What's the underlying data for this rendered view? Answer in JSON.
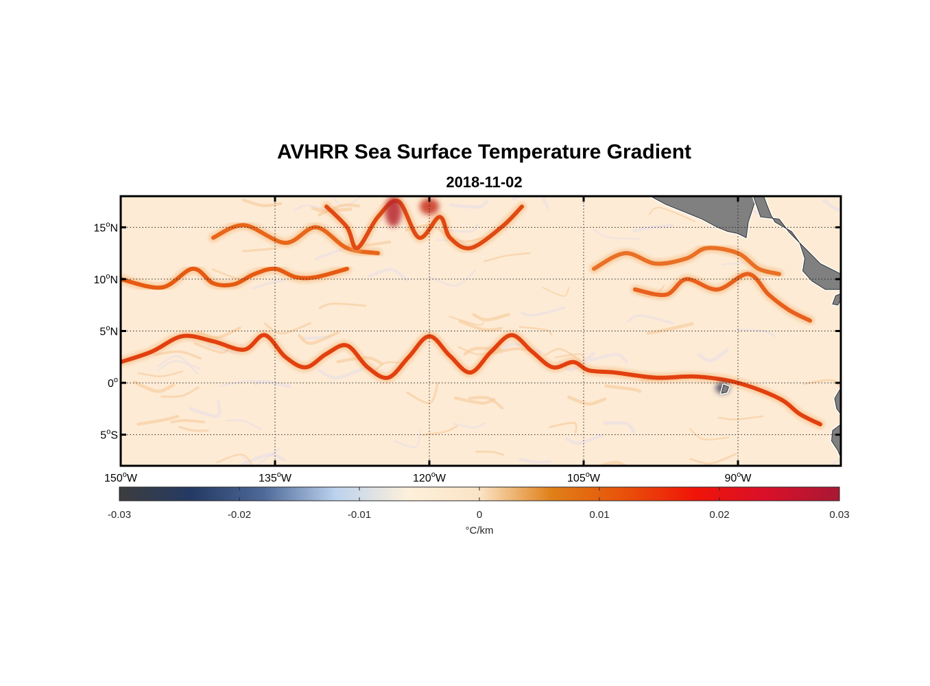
{
  "title": "AVHRR Sea Surface Temperature Gradient",
  "subtitle": "2018-11-02",
  "map": {
    "extent": {
      "lon": [
        -150,
        -80
      ],
      "lat": [
        -8,
        18
      ]
    },
    "land_color": "#808080",
    "ocean_base_color": "#fdebd5",
    "gridlines": "dotted",
    "lat_ticks": [
      {
        "lat": 15,
        "num": "15",
        "sup": "o",
        "hem": "N"
      },
      {
        "lat": 10,
        "num": "10",
        "sup": "o",
        "hem": "N"
      },
      {
        "lat": 5,
        "num": "5",
        "sup": "o",
        "hem": "N"
      },
      {
        "lat": 0,
        "num": "0",
        "sup": "o",
        "hem": ""
      },
      {
        "lat": -5,
        "num": "5",
        "sup": "o",
        "hem": "S"
      }
    ],
    "lon_ticks": [
      {
        "lon": -150,
        "num": "150",
        "sup": "o",
        "hem": "W"
      },
      {
        "lon": -135,
        "num": "135",
        "sup": "o",
        "hem": "W"
      },
      {
        "lon": -120,
        "num": "120",
        "sup": "o",
        "hem": "W"
      },
      {
        "lon": -105,
        "num": "105",
        "sup": "o",
        "hem": "W"
      },
      {
        "lon": -90,
        "num": "90",
        "sup": "o",
        "hem": "W"
      }
    ],
    "fronts": [
      {
        "name": "equatorial-front",
        "color": "#e2400f",
        "points": [
          [
            -150,
            2
          ],
          [
            -147,
            3
          ],
          [
            -144,
            4.5
          ],
          [
            -141,
            4
          ],
          [
            -138,
            3.2
          ],
          [
            -136,
            4.6
          ],
          [
            -134,
            2.5
          ],
          [
            -132,
            1.5
          ],
          [
            -130,
            2.8
          ],
          [
            -128,
            3.6
          ],
          [
            -126,
            1.5
          ],
          [
            -124,
            0.5
          ],
          [
            -122,
            2.5
          ],
          [
            -120,
            4.5
          ],
          [
            -118,
            2.6
          ],
          [
            -116,
            1
          ],
          [
            -114,
            3
          ],
          [
            -112,
            4.6
          ],
          [
            -110,
            3
          ],
          [
            -108,
            1.5
          ],
          [
            -106,
            2
          ],
          [
            -104.5,
            1.2
          ],
          [
            -102,
            1
          ],
          [
            -98,
            0.5
          ],
          [
            -94,
            0.6
          ],
          [
            -90,
            0
          ],
          [
            -86,
            -1.5
          ],
          [
            -84,
            -3
          ],
          [
            -82,
            -4
          ]
        ]
      },
      {
        "name": "northern-front-10n",
        "color": "#e65a12",
        "points": [
          [
            -150,
            10
          ],
          [
            -146,
            9.2
          ],
          [
            -143,
            11
          ],
          [
            -141,
            9.6
          ],
          [
            -139,
            9.5
          ],
          [
            -137,
            10.5
          ],
          [
            -135,
            11
          ],
          [
            -133,
            10.2
          ],
          [
            -131,
            10.2
          ],
          [
            -128,
            11
          ]
        ]
      },
      {
        "name": "northern-front-14n",
        "color": "#e8661a",
        "points": [
          [
            -141,
            14
          ],
          [
            -138,
            15.2
          ],
          [
            -134,
            13.5
          ],
          [
            -131,
            15
          ],
          [
            -128,
            13
          ],
          [
            -125,
            12.5
          ]
        ]
      },
      {
        "name": "upper-front-a",
        "color": "#e04a12",
        "points": [
          [
            -130,
            17
          ],
          [
            -128,
            15
          ],
          [
            -127,
            13
          ],
          [
            -125,
            16
          ],
          [
            -123,
            17.5
          ],
          [
            -121,
            14
          ],
          [
            -119,
            16
          ],
          [
            -118,
            14
          ],
          [
            -116,
            13
          ],
          [
            -113,
            15
          ],
          [
            -111,
            17
          ]
        ]
      },
      {
        "name": "upper-front-b",
        "color": "#e97025",
        "points": [
          [
            -104,
            11
          ],
          [
            -101,
            12.5
          ],
          [
            -98,
            11.5
          ],
          [
            -95,
            12
          ],
          [
            -93,
            13
          ],
          [
            -90,
            12.5
          ],
          [
            -88,
            11
          ],
          [
            -86,
            10.5
          ]
        ]
      },
      {
        "name": "eastern-front",
        "color": "#e8601c",
        "points": [
          [
            -100,
            9
          ],
          [
            -97,
            8.5
          ],
          [
            -95,
            10
          ],
          [
            -92,
            9
          ],
          [
            -89,
            10.5
          ],
          [
            -87,
            8.5
          ],
          [
            -85,
            7
          ],
          [
            -83,
            6
          ]
        ]
      }
    ],
    "hotspots": [
      {
        "name": "hotspot",
        "lon": -123.5,
        "lat": 16.5,
        "rx": 12,
        "ry": 22,
        "color": "#b8262e"
      },
      {
        "name": "hotspot",
        "lon": -120,
        "lat": 17,
        "rx": 14,
        "ry": 12,
        "color": "#c8301c"
      },
      {
        "name": "hotspot",
        "lon": -91.5,
        "lat": -0.5,
        "rx": 10,
        "ry": 8,
        "color": "#3a3a5a"
      }
    ],
    "land": [
      {
        "name": "mexico-landmass",
        "points": [
          [
            -98.5,
            18
          ],
          [
            -97,
            17.2
          ],
          [
            -95,
            16.4
          ],
          [
            -93.5,
            15.8
          ],
          [
            -92,
            15
          ],
          [
            -91,
            14.6
          ],
          [
            -90,
            14.4
          ],
          [
            -89.2,
            14
          ],
          [
            -89,
            15.5
          ],
          [
            -88.5,
            17
          ],
          [
            -88.2,
            18
          ]
        ]
      },
      {
        "name": "central-america-landmass",
        "points": [
          [
            -88.5,
            18
          ],
          [
            -87.8,
            16
          ],
          [
            -86,
            15.8
          ],
          [
            -85,
            14.5
          ],
          [
            -84,
            13.5
          ],
          [
            -83.5,
            12
          ],
          [
            -83.7,
            10.8
          ],
          [
            -82.8,
            9.8
          ],
          [
            -81.5,
            9
          ],
          [
            -80,
            9
          ],
          [
            -80,
            10.5
          ],
          [
            -81,
            11
          ],
          [
            -82,
            11.5
          ],
          [
            -83,
            12.5
          ],
          [
            -84,
            13.5
          ],
          [
            -84.8,
            14.6
          ],
          [
            -86.4,
            15.5
          ],
          [
            -86.8,
            16.2
          ],
          [
            -87.2,
            17.2
          ],
          [
            -87.5,
            18
          ]
        ]
      },
      {
        "name": "panama-landmass",
        "points": [
          [
            -80,
            8
          ],
          [
            -80.3,
            7.5
          ],
          [
            -80.8,
            7.6
          ],
          [
            -80.5,
            8.4
          ],
          [
            -80,
            8.6
          ]
        ]
      },
      {
        "name": "south-america-landmass",
        "points": [
          [
            -80,
            -0.5
          ],
          [
            -80.6,
            -1.5
          ],
          [
            -80.4,
            -2.5
          ],
          [
            -80,
            -3
          ]
        ]
      },
      {
        "name": "peru-landmass",
        "points": [
          [
            -80,
            -4
          ],
          [
            -80.8,
            -4.6
          ],
          [
            -80.9,
            -5.6
          ],
          [
            -80.3,
            -6.5
          ],
          [
            -80,
            -7.2
          ]
        ]
      },
      {
        "name": "galapagos-island",
        "points": [
          [
            -91.4,
            -0.2
          ],
          [
            -90.9,
            -0.4
          ],
          [
            -91.1,
            -0.9
          ],
          [
            -91.6,
            -1
          ]
        ]
      }
    ]
  },
  "colorbar": {
    "min": -0.03,
    "max": 0.03,
    "ticks": [
      "-0.03",
      "-0.02",
      "-0.01",
      "0",
      "0.01",
      "0.02",
      "0.03"
    ],
    "label": "°C/km",
    "colors": [
      "#3d3d3d",
      "#243a64",
      "#4e6898",
      "#bcd2ee",
      "#fdf0dc",
      "#fbe4c6",
      "#df8018",
      "#e8520a",
      "#f01408",
      "#d8102a",
      "#a81834"
    ]
  }
}
